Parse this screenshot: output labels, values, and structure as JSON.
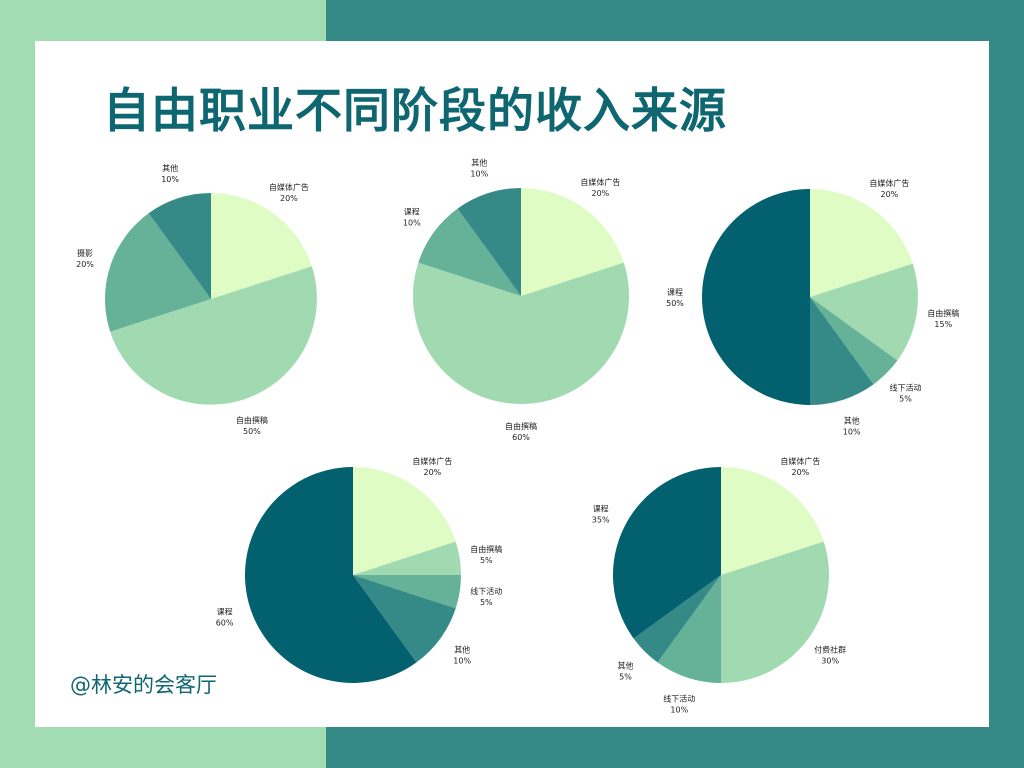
{
  "page": {
    "title": "自由职业不同阶段的收入来源",
    "watermark": "@林安的会客厅"
  },
  "colors": {
    "bg_left": "#a2dcb3",
    "bg_right": "#358a87",
    "title": "#0e6770",
    "watermark": "#0e6770",
    "palette": {
      "自媒体广告": "#dffcc5",
      "自由撰稿": "#a1dab1",
      "摄影": "#65b299",
      "课程": "#02606f",
      "其他": "#358a87",
      "线下活动": "#65b299",
      "付费社群": "#a1dab1"
    },
    "stage2_课程": "#65b299"
  },
  "chart_data": [
    {
      "type": "pie",
      "slices": [
        {
          "label": "自媒体广告",
          "value": 20,
          "value_text": "20%"
        },
        {
          "label": "自由撰稿",
          "value": 50,
          "value_text": "50%"
        },
        {
          "label": "摄影",
          "value": 20,
          "value_text": "20%"
        },
        {
          "label": "其他",
          "value": 10,
          "value_text": "10%"
        }
      ]
    },
    {
      "type": "pie",
      "slices": [
        {
          "label": "自媒体广告",
          "value": 20,
          "value_text": "20%"
        },
        {
          "label": "自由撰稿",
          "value": 60,
          "value_text": "60%"
        },
        {
          "label": "课程",
          "value": 10,
          "value_text": "10%"
        },
        {
          "label": "其他",
          "value": 10,
          "value_text": "10%"
        }
      ]
    },
    {
      "type": "pie",
      "slices": [
        {
          "label": "自媒体广告",
          "value": 20,
          "value_text": "20%"
        },
        {
          "label": "自由撰稿",
          "value": 15,
          "value_text": "15%"
        },
        {
          "label": "线下活动",
          "value": 5,
          "value_text": "5%"
        },
        {
          "label": "其他",
          "value": 10,
          "value_text": "10%"
        },
        {
          "label": "课程",
          "value": 50,
          "value_text": "50%"
        }
      ]
    },
    {
      "type": "pie",
      "slices": [
        {
          "label": "自媒体广告",
          "value": 20,
          "value_text": "20%"
        },
        {
          "label": "自由撰稿",
          "value": 5,
          "value_text": "5%"
        },
        {
          "label": "线下活动",
          "value": 5,
          "value_text": "5%"
        },
        {
          "label": "其他",
          "value": 10,
          "value_text": "10%"
        },
        {
          "label": "课程",
          "value": 60,
          "value_text": "60%"
        }
      ]
    },
    {
      "type": "pie",
      "slices": [
        {
          "label": "自媒体广告",
          "value": 20,
          "value_text": "20%"
        },
        {
          "label": "付费社群",
          "value": 30,
          "value_text": "30%"
        },
        {
          "label": "线下活动",
          "value": 10,
          "value_text": "10%"
        },
        {
          "label": "其他",
          "value": 5,
          "value_text": "5%"
        },
        {
          "label": "课程",
          "value": 35,
          "value_text": "35%"
        }
      ]
    }
  ]
}
